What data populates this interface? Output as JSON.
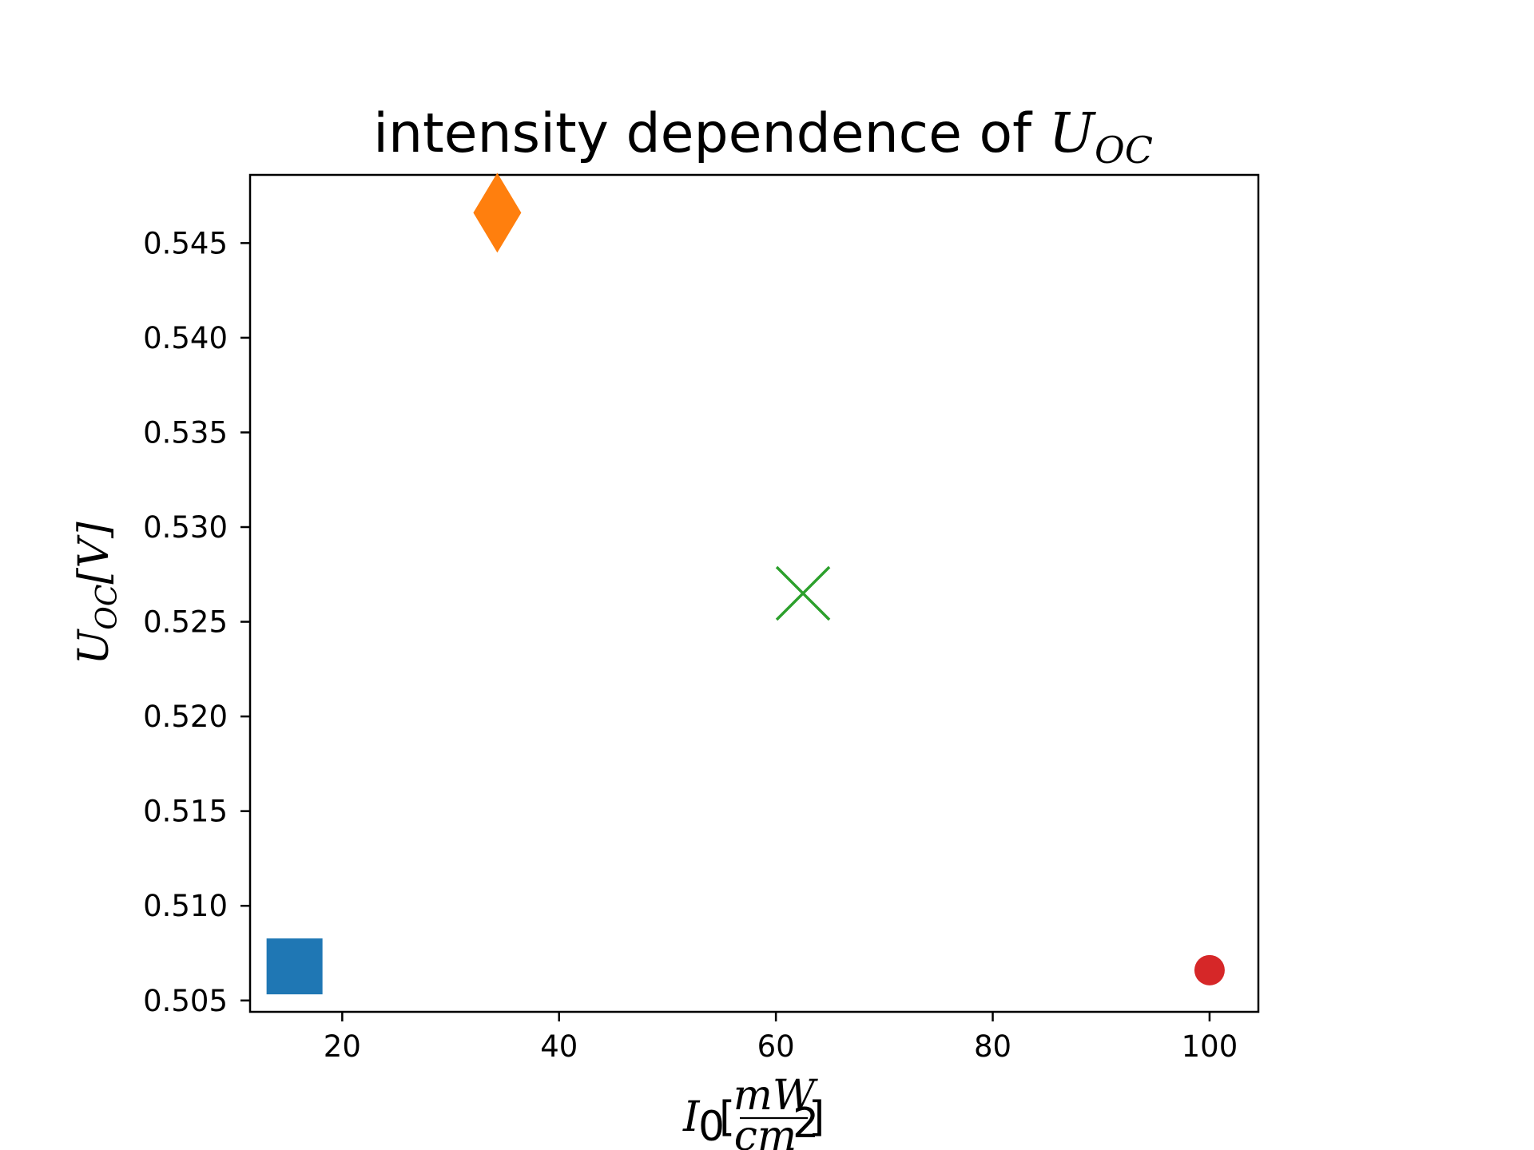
{
  "chart_data": {
    "type": "scatter",
    "title_prefix": "intensity dependence of ",
    "title_math_base": "U",
    "title_math_sub": "OC",
    "xlabel_base": "I",
    "xlabel_sub": "0",
    "xlabel_open": "[",
    "xlabel_num": "mW",
    "xlabel_den_base": "cm",
    "xlabel_den_sup": "2",
    "xlabel_close": "]",
    "ylabel_base": "U",
    "ylabel_sub": "OC",
    "ylabel_unit": "[V]",
    "xlim": [
      11.5,
      104.5
    ],
    "ylim": [
      0.5044,
      0.5486
    ],
    "xticks": [
      20,
      40,
      60,
      80,
      100
    ],
    "xtick_labels": [
      "20",
      "40",
      "60",
      "80",
      "100"
    ],
    "yticks": [
      0.505,
      0.51,
      0.515,
      0.52,
      0.525,
      0.53,
      0.535,
      0.54,
      0.545
    ],
    "ytick_labels": [
      "0.505",
      "0.510",
      "0.515",
      "0.520",
      "0.525",
      "0.530",
      "0.535",
      "0.540",
      "0.545"
    ],
    "grid": false,
    "points": [
      {
        "x": 15.6,
        "y": 0.5068,
        "marker": "square",
        "color": "#1f77b4"
      },
      {
        "x": 34.3,
        "y": 0.5466,
        "marker": "diamond",
        "color": "#ff7f0e"
      },
      {
        "x": 62.5,
        "y": 0.5265,
        "marker": "x",
        "color": "#2ca02c"
      },
      {
        "x": 100.0,
        "y": 0.5066,
        "marker": "circle",
        "color": "#d62728"
      }
    ]
  }
}
